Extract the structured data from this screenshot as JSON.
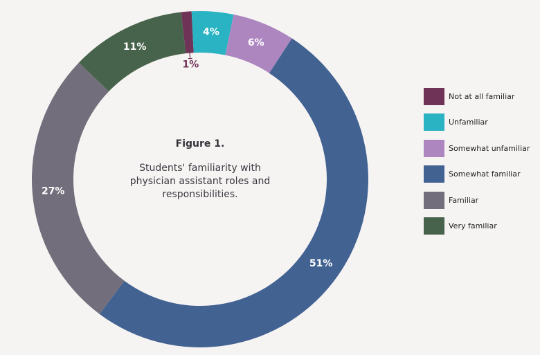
{
  "figure": {
    "title": "Figure 1.",
    "caption": "Students' familiarity with physician assistant roles and responsibilities."
  },
  "chart_data": {
    "type": "pie",
    "donut": true,
    "categories": [
      "Not at all familiar",
      "Unfamiliar",
      "Somewhat unfamiliar",
      "Somewhat familiar",
      "Familiar",
      "Very familiar"
    ],
    "values": [
      1,
      4,
      6,
      51,
      27,
      11
    ],
    "value_labels": [
      "1%",
      "4%",
      "6%",
      "51%",
      "27%",
      "11%"
    ],
    "colors": [
      "#6f3358",
      "#2ab3c2",
      "#ad86c0",
      "#426292",
      "#736e7b",
      "#48634b"
    ],
    "legend_position": "right"
  }
}
